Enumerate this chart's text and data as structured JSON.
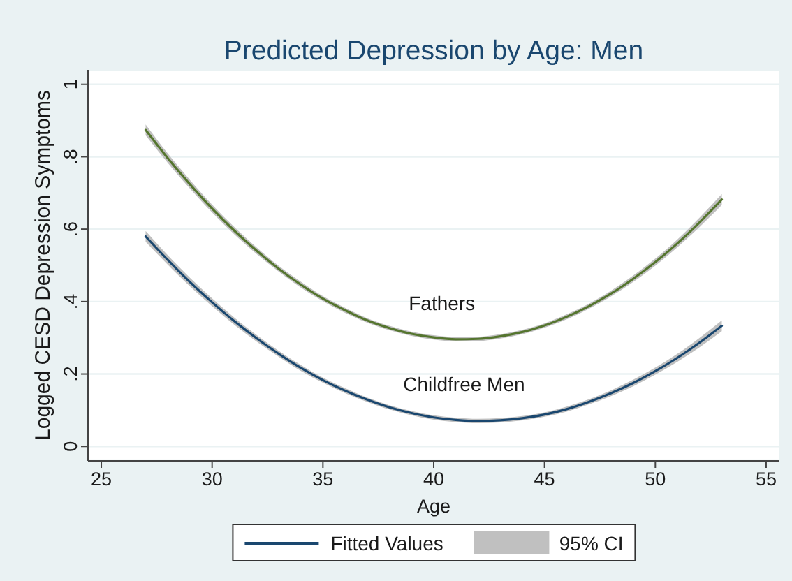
{
  "chart_data": {
    "type": "line",
    "title": "Predicted Depression by Age: Men",
    "xlabel": "Age",
    "ylabel": "Logged CESD Depression Symptoms",
    "x": [
      27,
      28,
      29,
      30,
      31,
      32,
      33,
      34,
      35,
      36,
      37,
      38,
      39,
      40,
      41,
      42,
      43,
      44,
      45,
      46,
      47,
      48,
      49,
      50,
      51,
      52,
      53
    ],
    "series": [
      {
        "name": "Childfree Men",
        "color": "#1a476f",
        "values": [
          0.58,
          0.515,
          0.454,
          0.398,
          0.346,
          0.299,
          0.256,
          0.217,
          0.183,
          0.154,
          0.129,
          0.108,
          0.092,
          0.08,
          0.073,
          0.07,
          0.072,
          0.078,
          0.088,
          0.103,
          0.123,
          0.147,
          0.175,
          0.208,
          0.245,
          0.287,
          0.333
        ],
        "lower": [
          0.565,
          0.502,
          0.442,
          0.387,
          0.336,
          0.29,
          0.248,
          0.209,
          0.176,
          0.147,
          0.123,
          0.102,
          0.086,
          0.074,
          0.067,
          0.064,
          0.066,
          0.072,
          0.082,
          0.096,
          0.116,
          0.139,
          0.166,
          0.198,
          0.234,
          0.274,
          0.318
        ],
        "upper": [
          0.595,
          0.528,
          0.466,
          0.409,
          0.356,
          0.308,
          0.264,
          0.225,
          0.19,
          0.161,
          0.135,
          0.114,
          0.098,
          0.086,
          0.079,
          0.076,
          0.078,
          0.084,
          0.094,
          0.11,
          0.13,
          0.155,
          0.184,
          0.218,
          0.256,
          0.3,
          0.348
        ]
      },
      {
        "name": "Fathers",
        "color": "#55752f",
        "values": [
          0.874,
          0.796,
          0.724,
          0.657,
          0.596,
          0.541,
          0.491,
          0.447,
          0.408,
          0.376,
          0.348,
          0.327,
          0.311,
          0.301,
          0.296,
          0.297,
          0.304,
          0.316,
          0.334,
          0.358,
          0.387,
          0.422,
          0.463,
          0.509,
          0.561,
          0.619,
          0.682
        ],
        "lower": [
          0.859,
          0.783,
          0.712,
          0.646,
          0.586,
          0.532,
          0.483,
          0.439,
          0.401,
          0.369,
          0.342,
          0.321,
          0.305,
          0.295,
          0.29,
          0.291,
          0.298,
          0.31,
          0.328,
          0.351,
          0.38,
          0.414,
          0.454,
          0.499,
          0.55,
          0.606,
          0.667
        ],
        "upper": [
          0.889,
          0.809,
          0.736,
          0.668,
          0.606,
          0.55,
          0.499,
          0.455,
          0.415,
          0.383,
          0.354,
          0.333,
          0.317,
          0.307,
          0.302,
          0.303,
          0.31,
          0.322,
          0.34,
          0.365,
          0.394,
          0.43,
          0.472,
          0.519,
          0.572,
          0.632,
          0.697
        ]
      }
    ],
    "xlim": [
      24.4,
      55.6
    ],
    "xticks": [
      25,
      30,
      35,
      40,
      45,
      50,
      55
    ],
    "ylim": [
      -0.04,
      1.04
    ],
    "yticks": [
      0,
      {
        "value": 0.2,
        "label": ".2"
      },
      {
        "value": 0.4,
        "label": ".4"
      },
      {
        "value": 0.6,
        "label": ".6"
      },
      {
        "value": 0.8,
        "label": ".8"
      },
      1
    ],
    "grid": "y",
    "legend": "bottom",
    "annotations": [
      "Fitted Values",
      "95% CI"
    ]
  }
}
